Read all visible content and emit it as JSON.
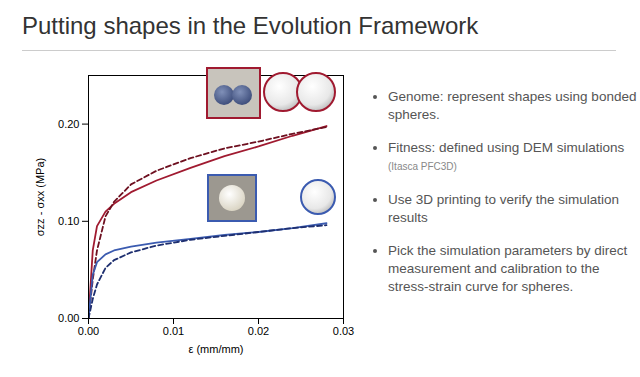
{
  "slide": {
    "title": "Putting shapes in the Evolution Framework",
    "bullets": [
      {
        "text": "Genome: represent shapes using bonded spheres."
      },
      {
        "text": "Fitness: defined using DEM simulations",
        "note": "(Itasca PFC3D)"
      },
      {
        "text": "Use 3D printing to verify the simulation results"
      },
      {
        "text": "Pick the simulation parameters by direct measurement and calibration to the stress-strain curve for spheres."
      }
    ]
  },
  "chart_data": {
    "type": "line",
    "x_label": "ε (mm/mm)",
    "y_label": "σzz - σxx (MPa)",
    "x": [
      0,
      0.0005,
      0.001,
      0.002,
      0.003,
      0.005,
      0.008,
      0.012,
      0.016,
      0.02,
      0.024,
      0.028
    ],
    "series": [
      {
        "color": "#a01a30",
        "line_style": "solid",
        "values": [
          0,
          0.07,
          0.095,
          0.11,
          0.118,
          0.13,
          0.142,
          0.155,
          0.167,
          0.177,
          0.188,
          0.198
        ]
      },
      {
        "color": "#6e1020",
        "line_style": "dashed",
        "values": [
          0,
          0.04,
          0.07,
          0.105,
          0.12,
          0.138,
          0.152,
          0.165,
          0.175,
          0.182,
          0.19,
          0.197
        ]
      },
      {
        "color": "#3b5bb0",
        "line_style": "solid",
        "values": [
          0,
          0.045,
          0.058,
          0.066,
          0.07,
          0.074,
          0.078,
          0.082,
          0.086,
          0.089,
          0.093,
          0.098
        ]
      },
      {
        "color": "#1e2f70",
        "line_style": "dashed",
        "values": [
          0,
          0.02,
          0.035,
          0.052,
          0.06,
          0.068,
          0.075,
          0.081,
          0.085,
          0.089,
          0.093,
          0.096
        ]
      }
    ],
    "xlim": [
      0,
      0.03
    ],
    "xticks": [
      {
        "value": 0,
        "label": "0.00"
      },
      0.01,
      0.02,
      0.03
    ],
    "ylim": [
      0,
      0.25
    ],
    "yticks": [
      {
        "value": 0,
        "label": "0.00"
      },
      {
        "value": 0.1,
        "label": "0.10"
      },
      {
        "value": 0.2,
        "label": "0.20"
      }
    ],
    "grid": false
  }
}
